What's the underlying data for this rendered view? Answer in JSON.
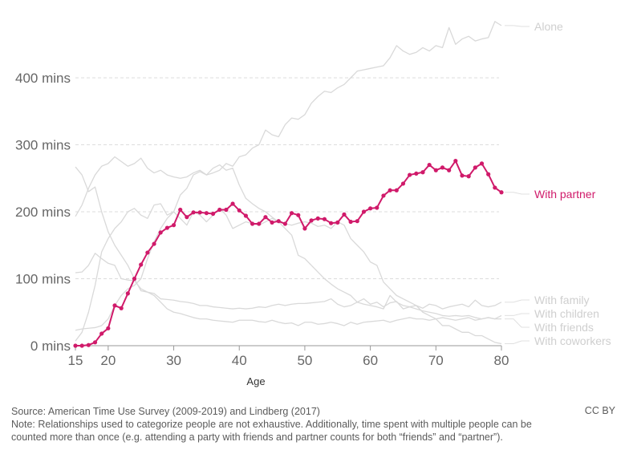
{
  "chart_data": {
    "type": "line",
    "xlabel": "Age",
    "ylabel": "",
    "x_start": 15,
    "x_end": 80,
    "xlim": [
      15,
      80
    ],
    "ylim": [
      0,
      490
    ],
    "x_ticks": [
      15,
      20,
      30,
      40,
      50,
      60,
      70,
      80
    ],
    "y_ticks": [
      {
        "value": 0,
        "label": "0 mins"
      },
      {
        "value": 100,
        "label": "100 mins"
      },
      {
        "value": 200,
        "label": "200 mins"
      },
      {
        "value": 300,
        "label": "300 mins"
      },
      {
        "value": 400,
        "label": "400 mins"
      }
    ],
    "grid": "horizontal dashed",
    "legend": "inline labels at right end of lines",
    "series": [
      {
        "name": "Alone",
        "color": "#d9d9d9",
        "highlighted": false,
        "values": [
          193,
          210,
          235,
          255,
          268,
          272,
          282,
          275,
          268,
          272,
          280,
          265,
          258,
          262,
          255,
          252,
          250,
          252,
          258,
          262,
          255,
          258,
          262,
          272,
          268,
          282,
          285,
          295,
          300,
          322,
          315,
          312,
          330,
          340,
          338,
          345,
          362,
          372,
          380,
          378,
          385,
          390,
          400,
          410,
          412,
          414,
          416,
          418,
          430,
          448,
          440,
          435,
          438,
          445,
          440,
          448,
          445,
          475,
          450,
          458,
          462,
          455,
          458,
          460,
          484,
          478
        ]
      },
      {
        "name": "With partner",
        "color": "#d01a6a",
        "highlighted": true,
        "values": [
          0,
          0,
          1,
          5,
          18,
          26,
          60,
          56,
          78,
          100,
          121,
          139,
          152,
          169,
          176,
          180,
          203,
          192,
          199,
          199,
          198,
          197,
          203,
          203,
          212,
          202,
          194,
          182,
          182,
          192,
          184,
          186,
          182,
          198,
          195,
          175,
          187,
          190,
          189,
          183,
          184,
          196,
          185,
          186,
          200,
          205,
          206,
          224,
          232,
          232,
          242,
          255,
          257,
          259,
          270,
          262,
          266,
          262,
          276,
          254,
          253,
          266,
          272,
          256,
          236,
          229
        ]
      },
      {
        "name": "With family",
        "color": "#d9d9d9",
        "highlighted": false,
        "values": [
          267,
          255,
          230,
          237,
          200,
          170,
          150,
          135,
          120,
          100,
          82,
          80,
          78,
          70,
          69,
          68,
          66,
          65,
          63,
          60,
          60,
          58,
          57,
          56,
          55,
          56,
          55,
          56,
          58,
          57,
          60,
          62,
          60,
          62,
          63,
          63,
          64,
          65,
          66,
          70,
          62,
          58,
          60,
          65,
          70,
          62,
          65,
          58,
          64,
          66,
          55,
          58,
          60,
          56,
          62,
          60,
          55,
          58,
          60,
          62,
          58,
          68,
          60,
          58,
          60,
          65
        ]
      },
      {
        "name": "With children",
        "color": "#d9d9d9",
        "highlighted": false,
        "values": [
          23,
          25,
          26,
          27,
          30,
          40,
          60,
          75,
          85,
          90,
          100,
          130,
          155,
          175,
          190,
          200,
          225,
          235,
          255,
          260,
          255,
          265,
          270,
          262,
          265,
          240,
          220,
          212,
          205,
          200,
          192,
          185,
          175,
          165,
          135,
          130,
          120,
          110,
          100,
          92,
          85,
          80,
          75,
          65,
          62,
          60,
          58,
          55,
          75,
          65,
          60,
          58,
          55,
          52,
          50,
          48,
          45,
          44,
          45,
          44,
          45,
          42,
          40,
          42,
          40,
          45
        ]
      },
      {
        "name": "With friends",
        "color": "#d9d9d9",
        "highlighted": false,
        "values": [
          109,
          110,
          120,
          138,
          130,
          123,
          120,
          100,
          98,
          97,
          85,
          80,
          75,
          65,
          55,
          50,
          48,
          45,
          42,
          40,
          40,
          38,
          37,
          36,
          35,
          38,
          38,
          38,
          36,
          35,
          38,
          35,
          33,
          34,
          30,
          35,
          35,
          32,
          33,
          35,
          33,
          30,
          35,
          32,
          35,
          36,
          37,
          38,
          35,
          38,
          40,
          42,
          40,
          40,
          38,
          40,
          42,
          40,
          38,
          40,
          42,
          38,
          40,
          42,
          40,
          40
        ]
      },
      {
        "name": "With coworkers",
        "color": "#d9d9d9",
        "highlighted": false,
        "values": [
          7,
          20,
          50,
          90,
          140,
          160,
          175,
          185,
          200,
          205,
          195,
          190,
          210,
          212,
          195,
          200,
          190,
          180,
          200,
          195,
          185,
          195,
          205,
          195,
          175,
          180,
          185,
          182,
          180,
          185,
          190,
          185,
          182,
          180,
          183,
          185,
          183,
          178,
          180,
          175,
          185,
          180,
          160,
          150,
          140,
          125,
          120,
          95,
          85,
          75,
          70,
          65,
          60,
          50,
          45,
          40,
          30,
          30,
          25,
          20,
          20,
          15,
          15,
          10,
          5,
          3
        ]
      }
    ]
  },
  "footer": {
    "source": "Source: American Time Use Survey (2009-2019) and Lindberg (2017)",
    "note": "Note: Relationships used to categorize people are not exhaustive. Additionally, time spent with multiple people can be counted more than once (e.g. attending a party with friends and partner counts for both “friends” and “partner”).",
    "license": "CC BY"
  }
}
